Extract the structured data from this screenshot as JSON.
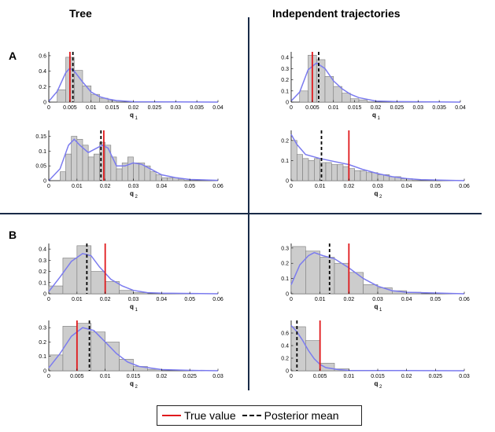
{
  "titles": {
    "left": "Tree",
    "right": "Independent trajectories"
  },
  "row_labels": {
    "a": "A",
    "b": "B"
  },
  "legend": {
    "true_value": "True value",
    "posterior_mean": "Posterior mean"
  },
  "colors": {
    "bar_fill": "#cccccc",
    "bar_edge": "#7a7a7a",
    "kde": "#7b7bef",
    "true_value": "#e0191c",
    "posterior_mean": "#000000",
    "divider": "#1a2b48"
  },
  "chart_data": [
    {
      "id": "A-tree-q1",
      "type": "bar",
      "panel": "A",
      "column": "Tree",
      "xlabel": "q",
      "xsub": "1",
      "xlim": [
        0,
        0.04
      ],
      "ylim": [
        0,
        0.65
      ],
      "xticks": [
        0,
        0.005,
        0.01,
        0.015,
        0.02,
        0.025,
        0.03,
        0.035,
        0.04
      ],
      "xtick_labels": [
        "0",
        "0.005",
        "0.01",
        "0.015",
        "0.02",
        "0.025",
        "0.03",
        "0.035",
        "0.04"
      ],
      "yticks": [
        0,
        0.2,
        0.4,
        0.6
      ],
      "ytick_labels": [
        "0",
        "0.2",
        "0.4",
        "0.6"
      ],
      "bin_width": 0.002,
      "bins": [
        0.003,
        0.005,
        0.007,
        0.009,
        0.011,
        0.013,
        0.015
      ],
      "values": [
        0.16,
        0.58,
        0.41,
        0.21,
        0.1,
        0.05,
        0.02
      ],
      "kde": [
        [
          0,
          0.01
        ],
        [
          0.002,
          0.14
        ],
        [
          0.004,
          0.38
        ],
        [
          0.005,
          0.44
        ],
        [
          0.006,
          0.4
        ],
        [
          0.008,
          0.26
        ],
        [
          0.01,
          0.13
        ],
        [
          0.012,
          0.07
        ],
        [
          0.014,
          0.04
        ],
        [
          0.016,
          0.02
        ],
        [
          0.02,
          0.005
        ],
        [
          0.04,
          0
        ]
      ],
      "true_value": 0.005,
      "posterior_mean": 0.0057
    },
    {
      "id": "A-tree-q2",
      "type": "bar",
      "panel": "A",
      "column": "Tree",
      "xlabel": "q",
      "xsub": "2",
      "xlim": [
        0,
        0.06
      ],
      "ylim": [
        0,
        0.17
      ],
      "xticks": [
        0,
        0.01,
        0.02,
        0.03,
        0.04,
        0.05,
        0.06
      ],
      "xtick_labels": [
        "0",
        "0.01",
        "0.02",
        "0.03",
        "0.04",
        "0.05",
        "0.06"
      ],
      "yticks": [
        0,
        0.05,
        0.1,
        0.15
      ],
      "ytick_labels": [
        "0",
        "0.05",
        "0.1",
        "0.15"
      ],
      "bin_width": 0.002,
      "bins": [
        0.005,
        0.007,
        0.009,
        0.011,
        0.013,
        0.015,
        0.017,
        0.019,
        0.021,
        0.023,
        0.025,
        0.027,
        0.029,
        0.031,
        0.033,
        0.035,
        0.037,
        0.039,
        0.041,
        0.043,
        0.045,
        0.047
      ],
      "values": [
        0.03,
        0.09,
        0.15,
        0.14,
        0.12,
        0.08,
        0.09,
        0.13,
        0.12,
        0.08,
        0.04,
        0.06,
        0.08,
        0.06,
        0.06,
        0.05,
        0.03,
        0.02,
        0.01,
        0.01,
        0.01,
        0.005
      ],
      "kde": [
        [
          0,
          0
        ],
        [
          0.004,
          0.04
        ],
        [
          0.007,
          0.12
        ],
        [
          0.009,
          0.14
        ],
        [
          0.011,
          0.12
        ],
        [
          0.014,
          0.095
        ],
        [
          0.017,
          0.11
        ],
        [
          0.019,
          0.12
        ],
        [
          0.021,
          0.11
        ],
        [
          0.024,
          0.05
        ],
        [
          0.027,
          0.05
        ],
        [
          0.03,
          0.06
        ],
        [
          0.033,
          0.055
        ],
        [
          0.036,
          0.04
        ],
        [
          0.04,
          0.02
        ],
        [
          0.045,
          0.01
        ],
        [
          0.05,
          0.004
        ],
        [
          0.06,
          0.001
        ]
      ],
      "true_value": 0.0195,
      "posterior_mean": 0.0185
    },
    {
      "id": "A-ind-q1",
      "type": "bar",
      "panel": "A",
      "column": "Independent trajectories",
      "xlabel": "q",
      "xsub": "1",
      "xlim": [
        0,
        0.04
      ],
      "ylim": [
        0,
        0.45
      ],
      "xticks": [
        0,
        0.005,
        0.01,
        0.015,
        0.02,
        0.025,
        0.03,
        0.035,
        0.04
      ],
      "xtick_labels": [
        "0",
        "0.005",
        "0.01",
        "0.015",
        "0.02",
        "0.025",
        "0.03",
        "0.035",
        "0.04"
      ],
      "yticks": [
        0,
        0.1,
        0.2,
        0.3,
        0.4
      ],
      "ytick_labels": [
        "0",
        "0.1",
        "0.2",
        "0.3",
        "0.4"
      ],
      "bin_width": 0.002,
      "bins": [
        0.003,
        0.005,
        0.007,
        0.009,
        0.011,
        0.013,
        0.015,
        0.017
      ],
      "values": [
        0.1,
        0.42,
        0.38,
        0.23,
        0.14,
        0.08,
        0.03,
        0.02
      ],
      "kde": [
        [
          0,
          0.01
        ],
        [
          0.002,
          0.09
        ],
        [
          0.004,
          0.29
        ],
        [
          0.006,
          0.35
        ],
        [
          0.008,
          0.3
        ],
        [
          0.01,
          0.19
        ],
        [
          0.012,
          0.12
        ],
        [
          0.014,
          0.07
        ],
        [
          0.016,
          0.04
        ],
        [
          0.02,
          0.01
        ],
        [
          0.025,
          0.004
        ],
        [
          0.04,
          0
        ]
      ],
      "true_value": 0.005,
      "posterior_mean": 0.0065
    },
    {
      "id": "A-ind-q2",
      "type": "bar",
      "panel": "A",
      "column": "Independent trajectories",
      "xlabel": "q",
      "xsub": "2",
      "xlim": [
        0,
        0.06
      ],
      "ylim": [
        0,
        0.25
      ],
      "xticks": [
        0,
        0.01,
        0.02,
        0.03,
        0.04,
        0.05,
        0.06
      ],
      "xtick_labels": [
        "0",
        "0.01",
        "0.02",
        "0.03",
        "0.04",
        "0.05",
        "0.06"
      ],
      "yticks": [
        0,
        0.1,
        0.2
      ],
      "ytick_labels": [
        "0",
        "0.1",
        "0.2"
      ],
      "bin_width": 0.002,
      "bins": [
        0.001,
        0.003,
        0.005,
        0.007,
        0.009,
        0.011,
        0.013,
        0.015,
        0.017,
        0.019,
        0.021,
        0.023,
        0.025,
        0.027,
        0.029,
        0.031,
        0.033,
        0.035,
        0.037,
        0.039,
        0.041
      ],
      "values": [
        0.2,
        0.13,
        0.11,
        0.1,
        0.11,
        0.09,
        0.09,
        0.08,
        0.08,
        0.07,
        0.06,
        0.05,
        0.05,
        0.04,
        0.04,
        0.03,
        0.03,
        0.02,
        0.02,
        0.01,
        0.01
      ],
      "kde": [
        [
          0,
          0.23
        ],
        [
          0.002,
          0.18
        ],
        [
          0.005,
          0.13
        ],
        [
          0.01,
          0.11
        ],
        [
          0.015,
          0.095
        ],
        [
          0.02,
          0.08
        ],
        [
          0.025,
          0.055
        ],
        [
          0.03,
          0.035
        ],
        [
          0.035,
          0.02
        ],
        [
          0.04,
          0.01
        ],
        [
          0.045,
          0.005
        ],
        [
          0.06,
          0
        ]
      ],
      "true_value": 0.02,
      "posterior_mean": 0.0105
    },
    {
      "id": "B-tree-q1",
      "type": "bar",
      "panel": "B",
      "column": "Tree",
      "xlabel": "q",
      "xsub": "1",
      "xlim": [
        0,
        0.06
      ],
      "ylim": [
        0,
        0.45
      ],
      "xticks": [
        0,
        0.01,
        0.02,
        0.03,
        0.04,
        0.05,
        0.06
      ],
      "xtick_labels": [
        "0",
        "0.01",
        "0.02",
        "0.03",
        "0.04",
        "0.05",
        "0.06"
      ],
      "yticks": [
        0,
        0.1,
        0.2,
        0.3,
        0.4
      ],
      "ytick_labels": [
        "0",
        "0.1",
        "0.2",
        "0.3",
        "0.4"
      ],
      "bin_width": 0.005,
      "bins": [
        0.0025,
        0.0075,
        0.0125,
        0.0175,
        0.0225,
        0.0275,
        0.0325
      ],
      "values": [
        0.07,
        0.32,
        0.43,
        0.2,
        0.11,
        0.03,
        0.01
      ],
      "kde": [
        [
          0,
          0.02
        ],
        [
          0.004,
          0.15
        ],
        [
          0.008,
          0.29
        ],
        [
          0.012,
          0.36
        ],
        [
          0.015,
          0.34
        ],
        [
          0.018,
          0.24
        ],
        [
          0.022,
          0.13
        ],
        [
          0.026,
          0.07
        ],
        [
          0.03,
          0.03
        ],
        [
          0.035,
          0.01
        ],
        [
          0.04,
          0.005
        ],
        [
          0.06,
          0
        ]
      ],
      "true_value": 0.02,
      "posterior_mean": 0.0135
    },
    {
      "id": "B-tree-q2",
      "type": "bar",
      "panel": "B",
      "column": "Tree",
      "xlabel": "q",
      "xsub": "2",
      "xlim": [
        0,
        0.03
      ],
      "ylim": [
        0,
        0.35
      ],
      "xticks": [
        0,
        0.005,
        0.01,
        0.015,
        0.02,
        0.025,
        0.03
      ],
      "xtick_labels": [
        "0",
        "0.005",
        "0.01",
        "0.015",
        "0.02",
        "0.025",
        "0.03"
      ],
      "yticks": [
        0,
        0.1,
        0.2,
        0.3
      ],
      "ytick_labels": [
        "0",
        "0.1",
        "0.2",
        "0.3"
      ],
      "bin_width": 0.0025,
      "bins": [
        0.00125,
        0.00375,
        0.00625,
        0.00875,
        0.01125,
        0.01375,
        0.01625,
        0.01875
      ],
      "values": [
        0.11,
        0.31,
        0.33,
        0.27,
        0.2,
        0.08,
        0.03,
        0.01
      ],
      "kde": [
        [
          0,
          0.02
        ],
        [
          0.002,
          0.12
        ],
        [
          0.004,
          0.24
        ],
        [
          0.006,
          0.3
        ],
        [
          0.008,
          0.28
        ],
        [
          0.01,
          0.2
        ],
        [
          0.012,
          0.12
        ],
        [
          0.014,
          0.06
        ],
        [
          0.016,
          0.03
        ],
        [
          0.02,
          0.008
        ],
        [
          0.025,
          0.003
        ],
        [
          0.03,
          0
        ]
      ],
      "true_value": 0.005,
      "posterior_mean": 0.0072
    },
    {
      "id": "B-ind-q1",
      "type": "bar",
      "panel": "B",
      "column": "Independent trajectories",
      "xlabel": "q",
      "xsub": "1",
      "xlim": [
        0,
        0.06
      ],
      "ylim": [
        0,
        0.33
      ],
      "xticks": [
        0,
        0.01,
        0.02,
        0.03,
        0.04,
        0.05,
        0.06
      ],
      "xtick_labels": [
        "0",
        "0.01",
        "0.02",
        "0.03",
        "0.04",
        "0.05",
        "0.06"
      ],
      "yticks": [
        0,
        0.1,
        0.2,
        0.3
      ],
      "ytick_labels": [
        "0",
        "0.1",
        "0.2",
        "0.3"
      ],
      "bin_width": 0.005,
      "bins": [
        0.0025,
        0.0075,
        0.0125,
        0.0175,
        0.0225,
        0.0275,
        0.0325,
        0.0375,
        0.0425
      ],
      "values": [
        0.31,
        0.28,
        0.24,
        0.2,
        0.14,
        0.06,
        0.04,
        0.02,
        0.01
      ],
      "kde": [
        [
          0,
          0.06
        ],
        [
          0.003,
          0.19
        ],
        [
          0.006,
          0.25
        ],
        [
          0.008,
          0.27
        ],
        [
          0.011,
          0.25
        ],
        [
          0.015,
          0.23
        ],
        [
          0.02,
          0.17
        ],
        [
          0.025,
          0.1
        ],
        [
          0.03,
          0.05
        ],
        [
          0.035,
          0.02
        ],
        [
          0.04,
          0.01
        ],
        [
          0.06,
          0
        ]
      ],
      "true_value": 0.02,
      "posterior_mean": 0.0133
    },
    {
      "id": "B-ind-q2",
      "type": "bar",
      "panel": "B",
      "column": "Independent trajectories",
      "xlabel": "q",
      "xsub": "2",
      "xlim": [
        0,
        0.03
      ],
      "ylim": [
        0,
        0.8
      ],
      "xticks": [
        0,
        0.005,
        0.01,
        0.015,
        0.02,
        0.025,
        0.03
      ],
      "xtick_labels": [
        "0",
        "0.005",
        "0.01",
        "0.015",
        "0.02",
        "0.025",
        "0.03"
      ],
      "yticks": [
        0,
        0.2,
        0.4,
        0.6
      ],
      "ytick_labels": [
        "0",
        "0.2",
        "0.4",
        "0.6"
      ],
      "bin_width": 0.0025,
      "bins": [
        0.00125,
        0.00375,
        0.00625,
        0.00875
      ],
      "values": [
        0.7,
        0.48,
        0.12,
        0.03
      ],
      "kde": [
        [
          0,
          0.72
        ],
        [
          0.001,
          0.62
        ],
        [
          0.002,
          0.48
        ],
        [
          0.003,
          0.32
        ],
        [
          0.004,
          0.19
        ],
        [
          0.005,
          0.1
        ],
        [
          0.006,
          0.05
        ],
        [
          0.008,
          0.02
        ],
        [
          0.01,
          0.005
        ],
        [
          0.03,
          0
        ]
      ],
      "true_value": 0.005,
      "posterior_mean": 0.001
    }
  ]
}
